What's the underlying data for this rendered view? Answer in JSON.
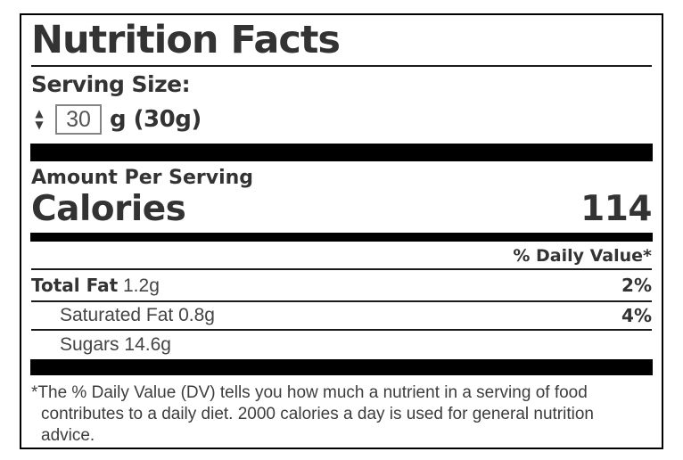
{
  "label": {
    "title": "Nutrition Facts",
    "serving": {
      "label": "Serving Size:",
      "value": "30",
      "unit": "g (30g)"
    },
    "amount_per_serving": "Amount Per Serving",
    "calories": {
      "label": "Calories",
      "value": "114"
    },
    "daily_value_header": "% Daily Value*",
    "nutrients": [
      {
        "name": "Total Fat",
        "amount": "1.2g",
        "daily_value": "2%"
      },
      {
        "name": "Saturated Fat",
        "amount": "0.8g",
        "daily_value": "4%"
      },
      {
        "name": "Sugars",
        "amount": "14.6g",
        "daily_value": ""
      }
    ],
    "footnote_marker": "*",
    "footnote": "The % Daily Value (DV) tells you how much a nutrient in a serving of food contributes to a daily diet. 2000 calories a day is used for general nutrition advice."
  },
  "icons": {
    "spinner_up": "▲",
    "spinner_down": "▼"
  },
  "colors": {
    "text_heavy": "#333333",
    "text_regular": "#444444",
    "bar": "#000000",
    "border": "#000000",
    "input_border": "#848484",
    "input_text": "#555555"
  }
}
